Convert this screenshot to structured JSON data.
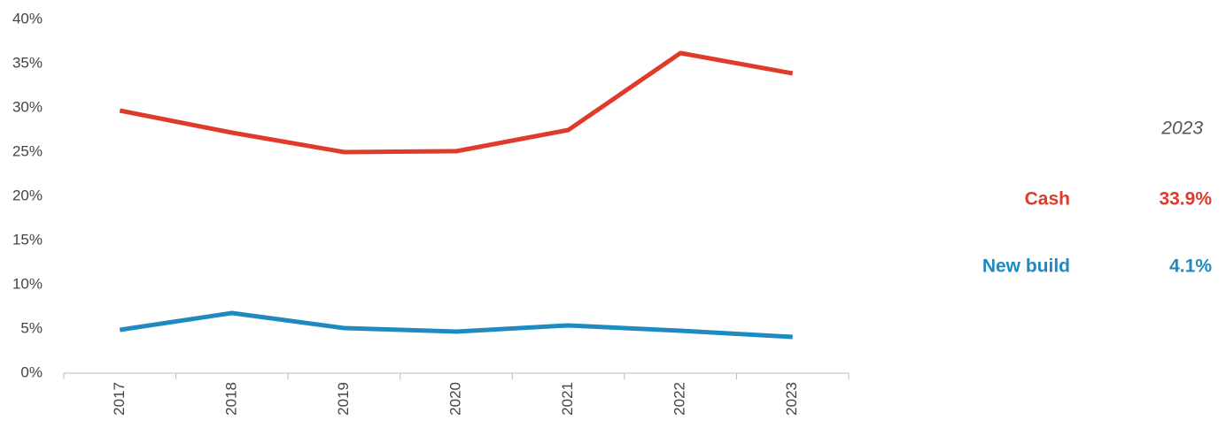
{
  "chart_data": {
    "type": "line",
    "categories": [
      "2017",
      "2018",
      "2019",
      "2020",
      "2021",
      "2022",
      "2023"
    ],
    "series": [
      {
        "name": "Cash",
        "color": "#e03a2a",
        "values": [
          29.7,
          27.2,
          25.0,
          25.1,
          27.5,
          36.2,
          33.9
        ],
        "value_labels": [
          null,
          null,
          null,
          null,
          null,
          null,
          "33.9%"
        ]
      },
      {
        "name": "New build",
        "color": "#1f8ac0",
        "values": [
          4.9,
          6.8,
          5.1,
          4.7,
          5.4,
          4.8,
          4.1
        ],
        "value_labels": [
          null,
          null,
          null,
          null,
          null,
          null,
          "4.1%"
        ]
      }
    ],
    "legend_title": "2023",
    "ylim": [
      0,
      40
    ],
    "yticks": [
      {
        "value": 0,
        "label": "0%"
      },
      {
        "value": 5,
        "label": "5%"
      },
      {
        "value": 10,
        "label": "10%"
      },
      {
        "value": 15,
        "label": "15%"
      },
      {
        "value": 20,
        "label": "20%"
      },
      {
        "value": 25,
        "label": "25%"
      },
      {
        "value": 30,
        "label": "30%"
      },
      {
        "value": 35,
        "label": "35%"
      },
      {
        "value": 40,
        "label": "40%"
      }
    ],
    "grid": false
  }
}
